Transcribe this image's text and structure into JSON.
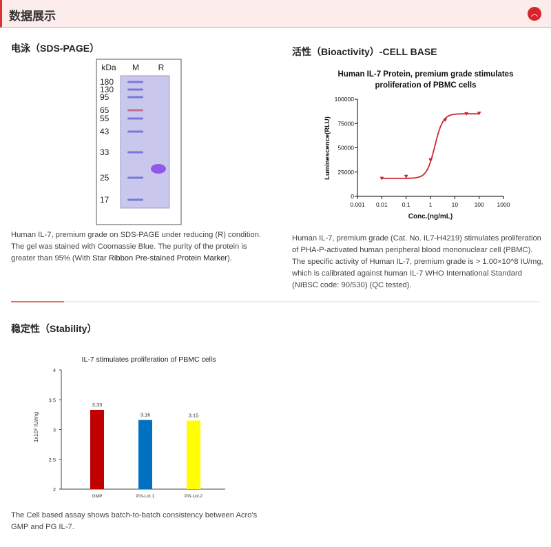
{
  "header": {
    "title": "数据展示",
    "collapse_icon": "chevron-up-icon",
    "accent": "#d8242c"
  },
  "sds": {
    "title": "电泳（SDS-PAGE）",
    "gel": {
      "unit_label": "kDa",
      "lanes": [
        "M",
        "R"
      ],
      "markers": [
        "180",
        "130",
        "95",
        "65",
        "55",
        "43",
        "33",
        "25",
        "17"
      ]
    },
    "caption_pre": "Human IL-7, premium grade on SDS-PAGE under reducing (R) condition. The gel was stained with Coomassie Blue. The purity of the protein is greater than 95% (With ",
    "caption_link": "Star Ribbon Pre-stained Protein Marker",
    "caption_post": ")."
  },
  "bio": {
    "title": "活性（Bioactivity）-CELL BASE",
    "caption": "Human IL-7, premium grade (Cat. No. IL7-H4219) stimulates proliferation of PHA-P-activated human peripheral blood mononuclear cell (PBMC). The specific activity of Human IL-7, premium grade is > 1.00×10^8 IU/mg, which is calibrated against human IL-7 WHO International Standard (NIBSC code: 90/530) (QC tested)."
  },
  "stability": {
    "title": "稳定性（Stability）",
    "caption": "The Cell based assay shows batch-to-batch consistency between Acro's GMP and PG IL-7."
  },
  "chart_data": [
    {
      "type": "line",
      "title_line1": "Human IL-7 Protein, premium grade stimulates",
      "title_line2": "proliferation of PBMC cells",
      "xlabel": "Conc.(ng/mL)",
      "ylabel": "Luminescence(RLU)",
      "xscale": "log",
      "xlim": [
        0.001,
        1000
      ],
      "ylim": [
        0,
        100000
      ],
      "xticks": [
        "0.001",
        "0.01",
        "0.1",
        "1",
        "10",
        "100",
        "1000"
      ],
      "yticks": [
        "0",
        "25000",
        "50000",
        "75000",
        "100000"
      ],
      "x": [
        0.01,
        0.1,
        1,
        4,
        30,
        100
      ],
      "y": [
        18000,
        20000,
        37000,
        78000,
        84500,
        85000
      ],
      "color": "#c8282e",
      "marker": "triangle-down"
    },
    {
      "type": "bar",
      "title": "IL-7  stimulates proliferation of PBMC cells",
      "ylabel": "1x10⁸ IU/mg",
      "ylim": [
        2,
        4
      ],
      "yticks": [
        "2",
        "2.5",
        "3",
        "3.5",
        "4"
      ],
      "categories": [
        "GMP",
        "PG-Lot.1",
        "PG-Lot.2"
      ],
      "values": [
        3.33,
        3.16,
        3.15
      ],
      "labels": [
        "3.33",
        "3.16",
        "3.15"
      ],
      "colors": [
        "#c00000",
        "#0070c0",
        "#ffff00"
      ]
    }
  ]
}
